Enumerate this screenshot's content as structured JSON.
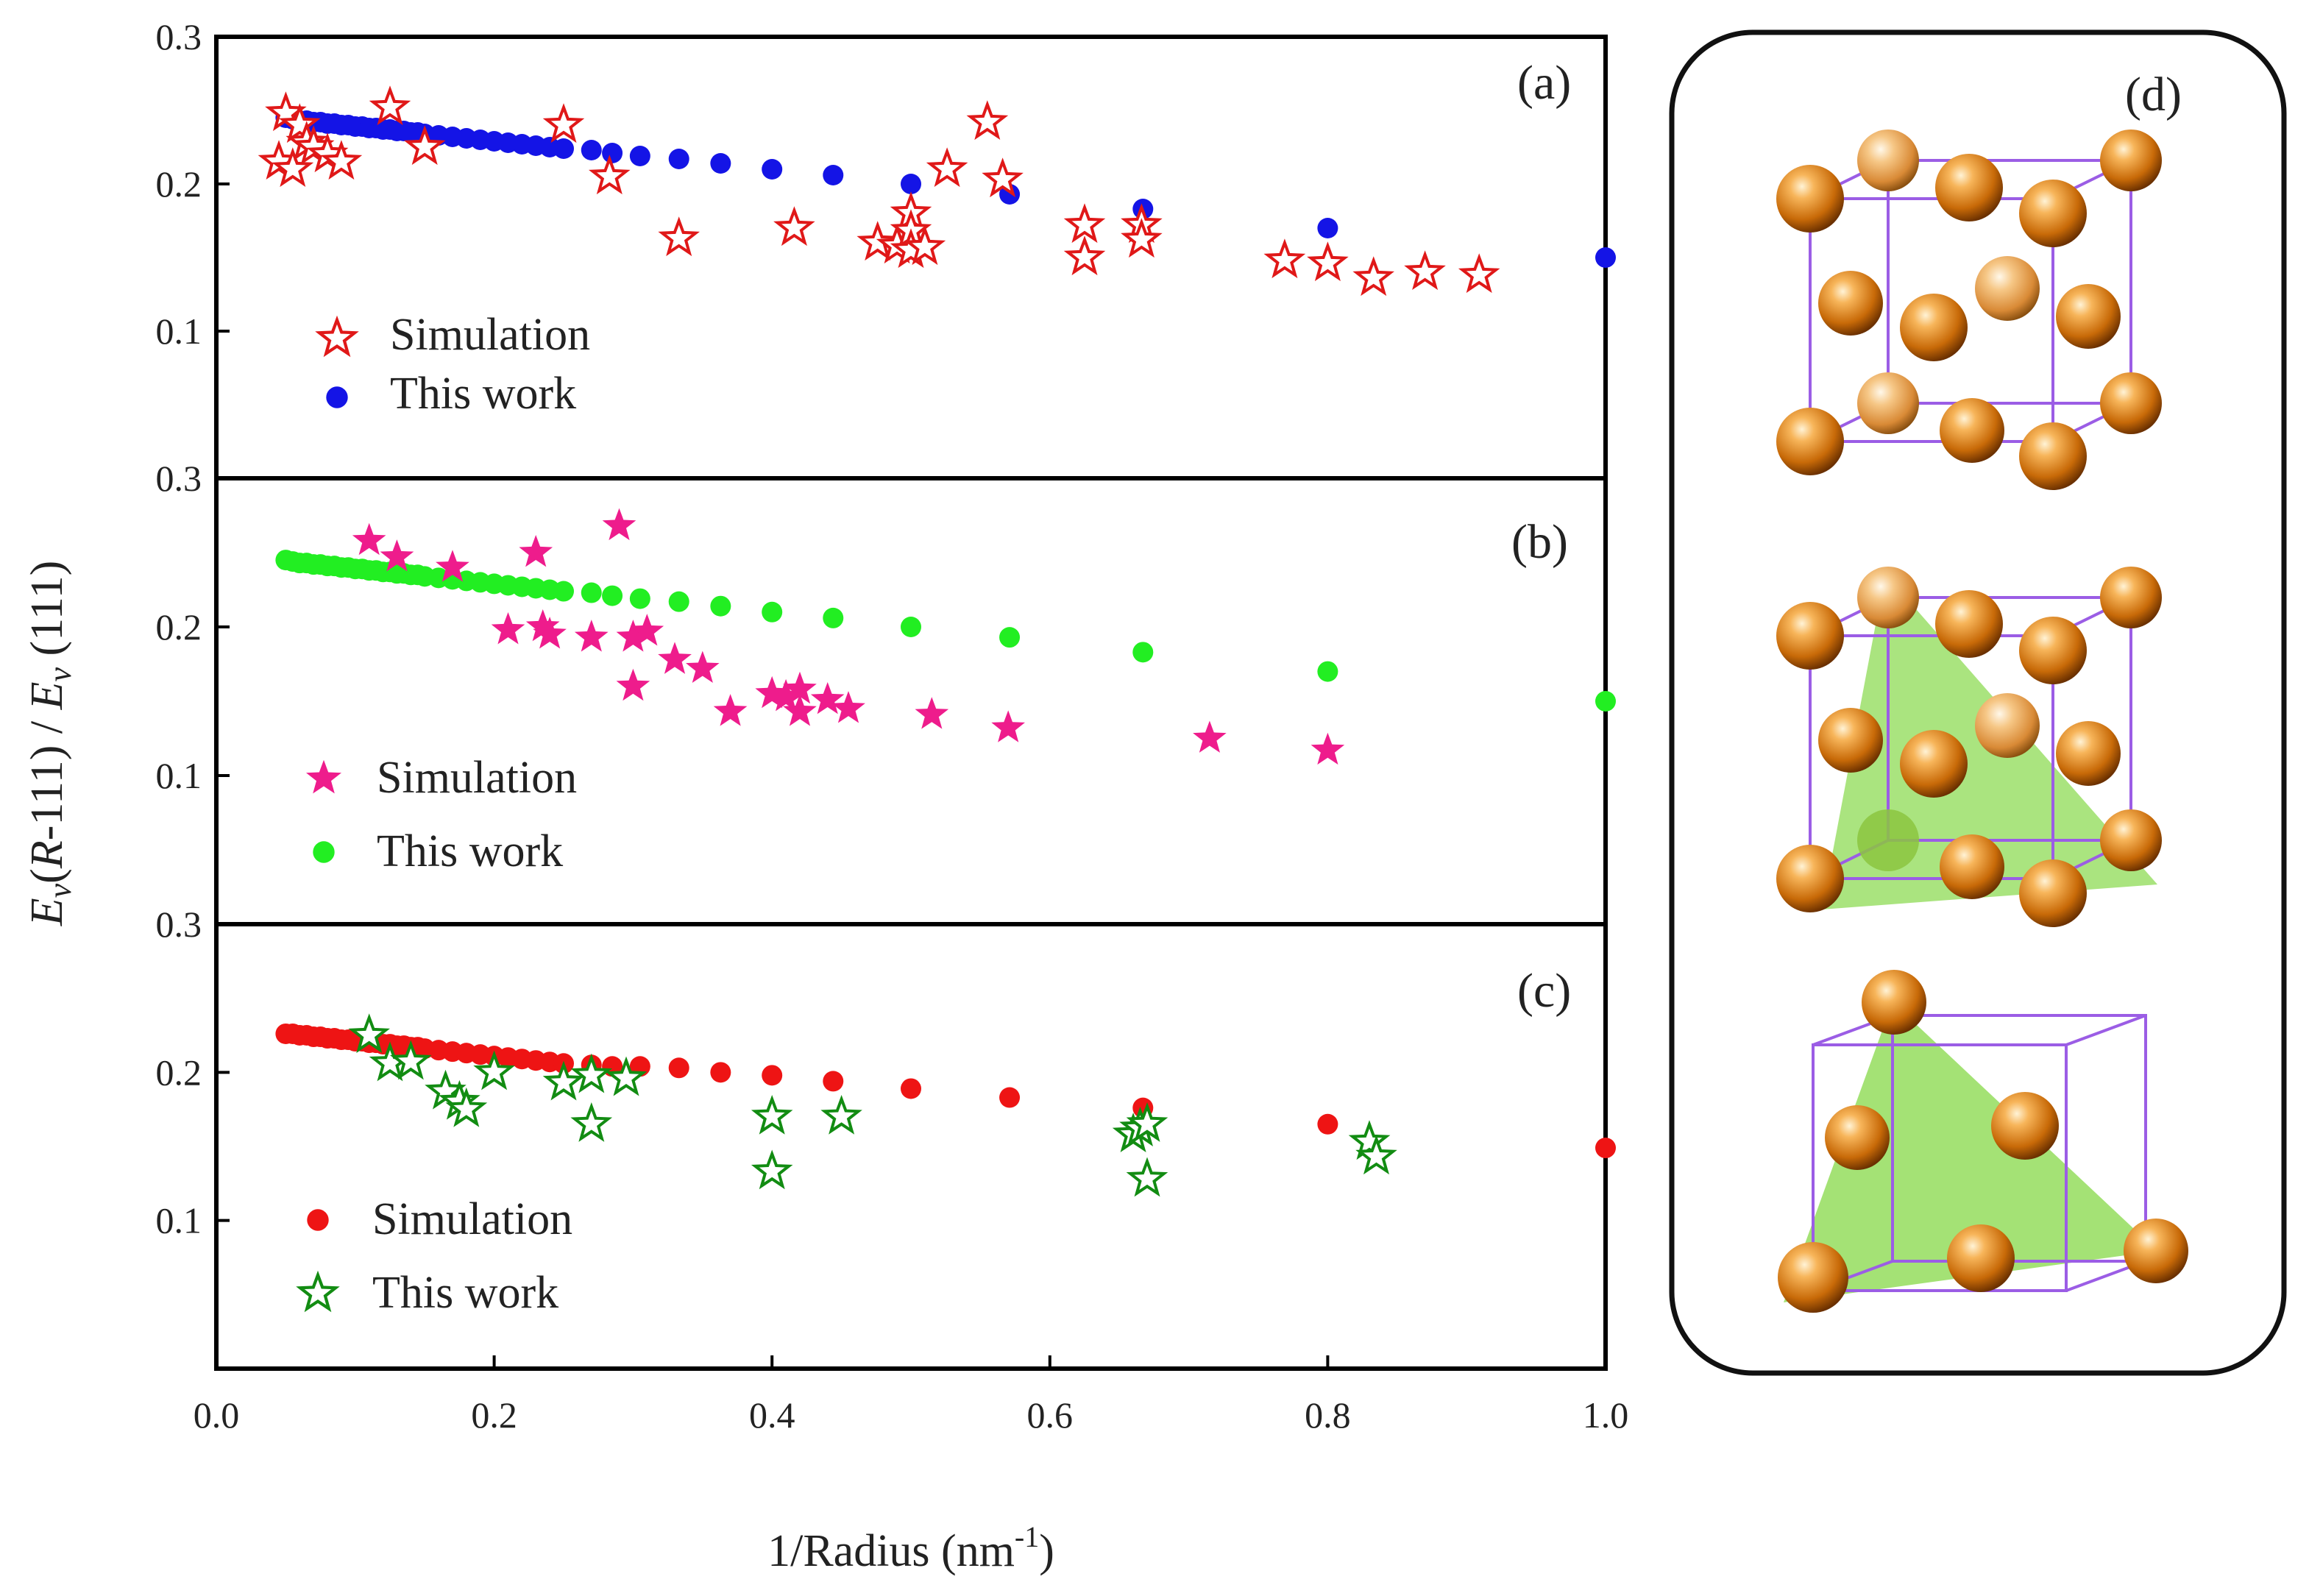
{
  "figure": {
    "xlabel_main": "1/Radius (nm",
    "xlabel_exp": "-1",
    "xlabel_end": ")",
    "ylabel_parts": [
      "E",
      "v",
      "(",
      "R",
      "-111) / ",
      "E",
      "v",
      " (111)"
    ],
    "panel_d_label": "(d)"
  },
  "chart_data": [
    {
      "type": "scatter",
      "panel_label": "(a)",
      "xlim": [
        0.0,
        1.0
      ],
      "ylim": [
        0.0,
        0.3
      ],
      "yticks": [
        "0.1",
        "0.2",
        "0.3"
      ],
      "xticks": [],
      "legend_position": "bottom-left",
      "series": [
        {
          "name": "Simulation",
          "marker": "star-open",
          "color": "#e01818",
          "x": [
            0.05,
            0.045,
            0.055,
            0.06,
            0.065,
            0.07,
            0.08,
            0.09,
            0.125,
            0.15,
            0.25,
            0.283,
            0.333,
            0.416,
            0.476,
            0.49,
            0.5,
            0.5,
            0.5,
            0.51,
            0.526,
            0.555,
            0.566,
            0.625,
            0.625,
            0.666,
            0.666,
            0.769,
            0.8,
            0.833,
            0.87,
            0.909
          ],
          "y": [
            0.248,
            0.215,
            0.21,
            0.24,
            0.228,
            0.225,
            0.22,
            0.215,
            0.252,
            0.225,
            0.24,
            0.205,
            0.163,
            0.17,
            0.16,
            0.158,
            0.18,
            0.168,
            0.155,
            0.157,
            0.21,
            0.242,
            0.203,
            0.172,
            0.15,
            0.172,
            0.162,
            0.148,
            0.146,
            0.136,
            0.14,
            0.138
          ]
        },
        {
          "name": "This work",
          "marker": "circle",
          "color": "#1414e6",
          "x": [
            0.05,
            0.055,
            0.06,
            0.065,
            0.07,
            0.075,
            0.08,
            0.085,
            0.09,
            0.095,
            0.1,
            0.105,
            0.11,
            0.115,
            0.12,
            0.125,
            0.13,
            0.135,
            0.14,
            0.145,
            0.15,
            0.16,
            0.17,
            0.18,
            0.19,
            0.2,
            0.21,
            0.22,
            0.23,
            0.24,
            0.25,
            0.27,
            0.285,
            0.305,
            0.333,
            0.363,
            0.4,
            0.444,
            0.5,
            0.571,
            0.667,
            0.8,
            1.0
          ],
          "y": [
            0.245,
            0.244,
            0.243,
            0.243,
            0.242,
            0.242,
            0.241,
            0.241,
            0.24,
            0.24,
            0.239,
            0.239,
            0.238,
            0.238,
            0.237,
            0.237,
            0.236,
            0.236,
            0.235,
            0.235,
            0.234,
            0.233,
            0.232,
            0.231,
            0.23,
            0.229,
            0.228,
            0.227,
            0.226,
            0.225,
            0.224,
            0.223,
            0.221,
            0.219,
            0.217,
            0.214,
            0.21,
            0.206,
            0.2,
            0.193,
            0.183,
            0.17,
            0.15
          ]
        }
      ]
    },
    {
      "type": "scatter",
      "panel_label": "(b)",
      "xlim": [
        0.0,
        1.0
      ],
      "ylim": [
        0.0,
        0.3
      ],
      "yticks": [
        "0.1",
        "0.2",
        "0.3"
      ],
      "xticks": [],
      "legend_position": "bottom-left",
      "series": [
        {
          "name": "Simulation",
          "marker": "star-filled",
          "color": "#ee1c8c",
          "x": [
            0.11,
            0.13,
            0.17,
            0.23,
            0.29,
            0.21,
            0.235,
            0.24,
            0.27,
            0.3,
            0.31,
            0.3,
            0.33,
            0.35,
            0.37,
            0.4,
            0.41,
            0.42,
            0.42,
            0.44,
            0.455,
            0.515,
            0.57,
            0.715,
            0.8
          ],
          "y": [
            0.258,
            0.247,
            0.24,
            0.25,
            0.268,
            0.198,
            0.2,
            0.195,
            0.193,
            0.193,
            0.197,
            0.16,
            0.178,
            0.172,
            0.143,
            0.155,
            0.153,
            0.158,
            0.143,
            0.151,
            0.145,
            0.141,
            0.132,
            0.125,
            0.117
          ]
        },
        {
          "name": "This work",
          "marker": "circle",
          "color": "#22ee22",
          "x": [
            0.05,
            0.055,
            0.06,
            0.065,
            0.07,
            0.075,
            0.08,
            0.085,
            0.09,
            0.095,
            0.1,
            0.105,
            0.11,
            0.115,
            0.12,
            0.125,
            0.13,
            0.135,
            0.14,
            0.145,
            0.15,
            0.16,
            0.17,
            0.18,
            0.19,
            0.2,
            0.21,
            0.22,
            0.23,
            0.24,
            0.25,
            0.27,
            0.285,
            0.305,
            0.333,
            0.363,
            0.4,
            0.444,
            0.5,
            0.571,
            0.667,
            0.8,
            1.0
          ],
          "y": [
            0.245,
            0.244,
            0.243,
            0.243,
            0.242,
            0.242,
            0.241,
            0.241,
            0.24,
            0.24,
            0.239,
            0.239,
            0.238,
            0.238,
            0.237,
            0.237,
            0.236,
            0.236,
            0.235,
            0.235,
            0.234,
            0.233,
            0.232,
            0.231,
            0.23,
            0.229,
            0.228,
            0.227,
            0.226,
            0.225,
            0.224,
            0.223,
            0.221,
            0.219,
            0.217,
            0.214,
            0.21,
            0.206,
            0.2,
            0.193,
            0.183,
            0.17,
            0.15
          ]
        }
      ]
    },
    {
      "type": "scatter",
      "panel_label": "(c)",
      "xlim": [
        0.0,
        1.0
      ],
      "ylim": [
        0.0,
        0.3
      ],
      "yticks": [
        "0.1",
        "0.2",
        "0.3"
      ],
      "xticks": [
        "0.0",
        "0.2",
        "0.4",
        "0.6",
        "0.8",
        "1.0"
      ],
      "legend_position": "bottom-left",
      "series": [
        {
          "name": "Simulation",
          "marker": "circle",
          "color": "#ee1414",
          "x": [
            0.05,
            0.055,
            0.06,
            0.065,
            0.07,
            0.075,
            0.08,
            0.085,
            0.09,
            0.095,
            0.1,
            0.105,
            0.11,
            0.115,
            0.12,
            0.125,
            0.13,
            0.135,
            0.14,
            0.145,
            0.15,
            0.16,
            0.17,
            0.18,
            0.19,
            0.2,
            0.21,
            0.22,
            0.23,
            0.24,
            0.25,
            0.27,
            0.285,
            0.305,
            0.333,
            0.363,
            0.4,
            0.444,
            0.5,
            0.571,
            0.667,
            0.8,
            1.0
          ],
          "y": [
            0.226,
            0.226,
            0.225,
            0.225,
            0.224,
            0.224,
            0.223,
            0.223,
            0.222,
            0.222,
            0.221,
            0.221,
            0.22,
            0.22,
            0.219,
            0.219,
            0.218,
            0.218,
            0.217,
            0.217,
            0.216,
            0.215,
            0.214,
            0.213,
            0.212,
            0.211,
            0.21,
            0.209,
            0.208,
            0.207,
            0.206,
            0.205,
            0.204,
            0.204,
            0.203,
            0.2,
            0.198,
            0.194,
            0.189,
            0.183,
            0.176,
            0.165,
            0.149
          ]
        },
        {
          "name": "This work",
          "marker": "star-open",
          "color": "#128c12",
          "x": [
            0.11,
            0.125,
            0.14,
            0.165,
            0.175,
            0.18,
            0.2,
            0.25,
            0.27,
            0.27,
            0.295,
            0.4,
            0.4,
            0.45,
            0.66,
            0.665,
            0.67,
            0.67,
            0.83,
            0.835
          ],
          "y": [
            0.225,
            0.206,
            0.207,
            0.187,
            0.18,
            0.175,
            0.2,
            0.193,
            0.198,
            0.165,
            0.196,
            0.17,
            0.133,
            0.17,
            0.158,
            0.162,
            0.165,
            0.128,
            0.153,
            0.143
          ]
        }
      ]
    }
  ]
}
